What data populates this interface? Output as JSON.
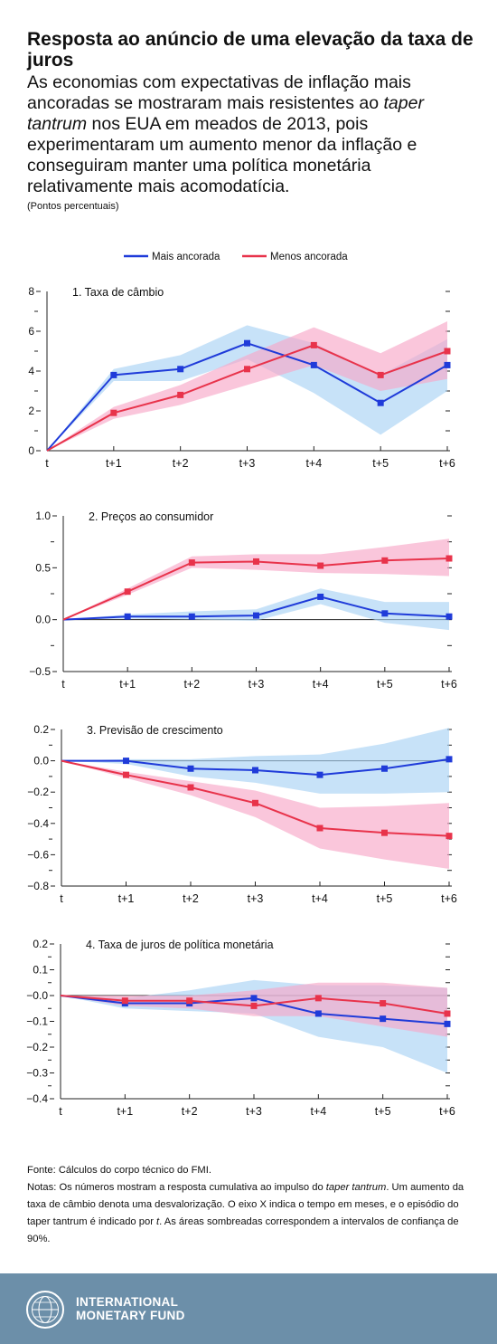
{
  "header": {
    "title": "Resposta ao anúncio de uma elevação da taxa de juros",
    "subtitle_1": "As economias com expectativas de inflação mais ancoradas se mostraram mais resistentes ao ",
    "subtitle_em": "taper tantrum",
    "subtitle_2": " nos EUA em meados de 2013, pois experimentaram um aumento menor da inflação e conseguiram manter uma política monetária relativamente mais acomodatícia.",
    "units": "(Pontos percentuais)"
  },
  "colors": {
    "mais": "#1f3bd9",
    "mais_band": "#a9d3f5",
    "menos": "#e8334b",
    "menos_band": "#f7a8c8",
    "footer": "#6c8fa9"
  },
  "chart_data": [
    {
      "type": "line",
      "title": "1. Taxa de câmbio",
      "x": [
        "t",
        "t+1",
        "t+2",
        "t+3",
        "t+4",
        "t+5",
        "t+6"
      ],
      "ylim": [
        0,
        8
      ],
      "yticks": [
        0,
        2,
        4,
        6,
        8
      ],
      "ytick_labels": [
        "0",
        "2",
        "4",
        "6",
        "8"
      ],
      "legend": [
        "Mais ancorada",
        "Menos ancorada"
      ],
      "series": [
        {
          "name": "Mais ancorada",
          "values": [
            0,
            3.8,
            4.1,
            5.4,
            4.3,
            2.4,
            4.3
          ],
          "lower": [
            0,
            3.5,
            3.5,
            4.6,
            2.9,
            0.8,
            3.0
          ],
          "upper": [
            0,
            4.1,
            4.8,
            6.3,
            5.4,
            3.8,
            5.6
          ]
        },
        {
          "name": "Menos ancorada",
          "values": [
            0,
            1.9,
            2.8,
            4.1,
            5.3,
            3.8,
            5.0
          ],
          "lower": [
            0,
            1.6,
            2.3,
            3.3,
            4.3,
            3.0,
            3.6
          ],
          "upper": [
            0,
            2.2,
            3.3,
            4.8,
            6.2,
            4.9,
            6.5
          ]
        }
      ]
    },
    {
      "type": "line",
      "title": "2. Preços ao consumidor",
      "x": [
        "t",
        "t+1",
        "t+2",
        "t+3",
        "t+4",
        "t+5",
        "t+6"
      ],
      "ylim": [
        -0.5,
        1.0
      ],
      "yticks": [
        -0.5,
        0.0,
        0.5,
        1.0
      ],
      "ytick_labels": [
        "−0.5",
        "0.0",
        "0.5",
        "1.0"
      ],
      "series": [
        {
          "name": "Mais ancorada",
          "values": [
            0,
            0.03,
            0.03,
            0.04,
            0.22,
            0.06,
            0.03
          ],
          "lower": [
            0,
            0.01,
            0.0,
            -0.01,
            0.15,
            -0.03,
            -0.1
          ],
          "upper": [
            0,
            0.05,
            0.08,
            0.1,
            0.3,
            0.17,
            0.17
          ]
        },
        {
          "name": "Menos ancorada",
          "values": [
            0,
            0.27,
            0.55,
            0.56,
            0.52,
            0.57,
            0.59
          ],
          "lower": [
            0,
            0.24,
            0.5,
            0.48,
            0.45,
            0.44,
            0.42
          ],
          "upper": [
            0,
            0.3,
            0.61,
            0.63,
            0.63,
            0.7,
            0.78
          ]
        }
      ]
    },
    {
      "type": "line",
      "title": "3. Previsão de crescimento",
      "x": [
        "t",
        "t+1",
        "t+2",
        "t+3",
        "t+4",
        "t+5",
        "t+6"
      ],
      "ylim": [
        -0.8,
        0.2
      ],
      "yticks": [
        -0.8,
        -0.6,
        -0.4,
        -0.2,
        0.0,
        0.2
      ],
      "ytick_labels": [
        "−0.8",
        "−0.6",
        "−0.4",
        "−0.2",
        "0.0",
        "0.2"
      ],
      "series": [
        {
          "name": "Mais ancorada",
          "values": [
            0,
            0.0,
            -0.05,
            -0.06,
            -0.09,
            -0.05,
            0.01
          ],
          "lower": [
            0,
            -0.02,
            -0.1,
            -0.14,
            -0.21,
            -0.21,
            -0.2
          ],
          "upper": [
            0,
            0.01,
            0.01,
            0.03,
            0.04,
            0.11,
            0.21
          ]
        },
        {
          "name": "Menos ancorada",
          "values": [
            0,
            -0.09,
            -0.17,
            -0.27,
            -0.43,
            -0.46,
            -0.48
          ],
          "lower": [
            0,
            -0.11,
            -0.22,
            -0.36,
            -0.56,
            -0.63,
            -0.69
          ],
          "upper": [
            0,
            -0.07,
            -0.13,
            -0.19,
            -0.3,
            -0.29,
            -0.27
          ]
        }
      ]
    },
    {
      "type": "line",
      "title": "4. Taxa de juros de política monetária",
      "x": [
        "t",
        "t+1",
        "t+2",
        "t+3",
        "t+4",
        "t+5",
        "t+6"
      ],
      "ylim": [
        -0.4,
        0.2
      ],
      "yticks": [
        -0.4,
        -0.3,
        -0.2,
        -0.1,
        0.0,
        0.1,
        0.2
      ],
      "ytick_labels": [
        "−0.4",
        "−0.3",
        "−0.2",
        "−0.1",
        "−0.0",
        "0.1",
        "0.2"
      ],
      "series": [
        {
          "name": "Mais ancorada",
          "values": [
            0,
            -0.03,
            -0.03,
            -0.01,
            -0.07,
            -0.09,
            -0.11
          ],
          "lower": [
            0,
            -0.05,
            -0.06,
            -0.07,
            -0.16,
            -0.2,
            -0.3
          ],
          "upper": [
            0,
            -0.01,
            0.02,
            0.06,
            0.04,
            0.04,
            0.03
          ]
        },
        {
          "name": "Menos ancorada",
          "values": [
            0,
            -0.02,
            -0.02,
            -0.04,
            -0.01,
            -0.03,
            -0.07
          ],
          "lower": [
            0,
            -0.04,
            -0.05,
            -0.08,
            -0.08,
            -0.12,
            -0.16
          ],
          "upper": [
            0,
            0.0,
            0.0,
            0.02,
            0.05,
            0.05,
            0.03
          ]
        }
      ]
    }
  ],
  "notes": {
    "source": "Fonte: Cálculos do corpo técnico do FMI.",
    "notes_1": "Notas: Os números mostram a resposta cumulativa ao impulso do ",
    "notes_em": "taper tantrum",
    "notes_2": ". Um aumento da taxa de câmbio denota uma desvalorização. O eixo X indica o tempo em meses, e o episódio do taper tantrum é indicado por ",
    "notes_em2": "t",
    "notes_3": ". As áreas sombreadas correspondem a intervalos de confiança de 90%."
  },
  "footer": {
    "org_line1": "INTERNATIONAL",
    "org_line2": "MONETARY FUND",
    "logo_icon": "imf-seal-icon"
  }
}
